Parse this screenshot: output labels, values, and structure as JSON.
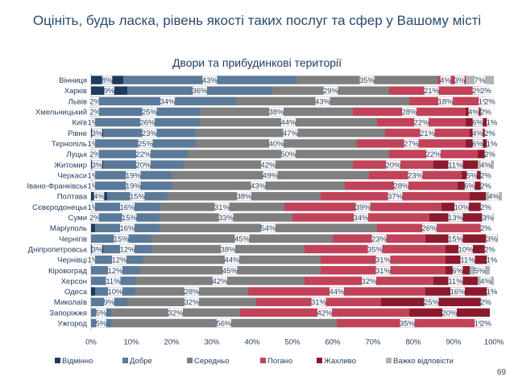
{
  "page": {
    "title": "Оцініть, будь ласка, рівень якості таких послуг та сфер у Вашому місті",
    "page_number": "69"
  },
  "chart_data": {
    "type": "bar",
    "orientation": "horizontal",
    "stacked": true,
    "title": "Двори та прибудинкові території",
    "xlim": [
      0,
      100
    ],
    "x_ticks": [
      "0%",
      "10%",
      "20%",
      "30%",
      "40%",
      "50%",
      "60%",
      "70%",
      "80%",
      "90%",
      "100%"
    ],
    "legend_position": "bottom",
    "categories": [
      "Вінниця",
      "Харків",
      "Львів",
      "Хмельницький",
      "Київ",
      "Рівне",
      "Тернопіль",
      "Луцьк",
      "Житомир",
      "Черкаси",
      "Івано-Франківськ",
      "Полтава",
      "Сєвєродонецьк",
      "Суми",
      "Маріуполь",
      "Чернігів",
      "Дніпропетровськ",
      "Чернівці",
      "Кіровоград",
      "Херсон",
      "Одеса",
      "Миколаїв",
      "Запоріжжя",
      "Ужгород"
    ],
    "series": [
      {
        "name": "Відмінно",
        "color": "#1f3a5f",
        "values": [
          8,
          9,
          2,
          2,
          1,
          3,
          1,
          2,
          3,
          1,
          1,
          4,
          1,
          2,
          1,
          0,
          3,
          1,
          0,
          0,
          1,
          0,
          0,
          0
        ],
        "labels": [
          "8%",
          "9%",
          "2%",
          "2%",
          "1%",
          "3%",
          "1%",
          "2%",
          "3%",
          "1%",
          "1%",
          "4%",
          "1%",
          "2%",
          "",
          "",
          "3%",
          "1%",
          "",
          "",
          "",
          "",
          "",
          ""
        ]
      },
      {
        "name": "Добре",
        "color": "#5b7a9a",
        "values": [
          43,
          36,
          34,
          25,
          26,
          23,
          25,
          22,
          20,
          19,
          19,
          15,
          16,
          15,
          16,
          15,
          12,
          12,
          12,
          11,
          10,
          9,
          5,
          5
        ],
        "labels": [
          "43%",
          "36%",
          "34%",
          "25%",
          "26%",
          "23%",
          "25%",
          "22%",
          "20%",
          "19%",
          "19%",
          "15%",
          "16%",
          "15%",
          "16%",
          "15%",
          "12%",
          "12%",
          "12%",
          "11%",
          "10%",
          "9%",
          "5%",
          "5%"
        ]
      },
      {
        "name": "Середньо",
        "color": "#7f7f7f",
        "values": [
          35,
          29,
          43,
          38,
          44,
          47,
          40,
          50,
          42,
          49,
          43,
          38,
          31,
          33,
          54,
          45,
          38,
          44,
          45,
          42,
          28,
          32,
          32,
          56
        ],
        "labels": [
          "35%",
          "29%",
          "43%",
          "38%",
          "44%",
          "47%",
          "40%",
          "50%",
          "42%",
          "49%",
          "43%",
          "38%",
          "31%",
          "33%",
          "54%",
          "45%",
          "38%",
          "44%",
          "45%",
          "42%",
          "28%",
          "32%",
          "32%",
          "56%"
        ]
      },
      {
        "name": "Погано",
        "color": "#c0435a",
        "values": [
          4,
          21,
          18,
          28,
          22,
          21,
          27,
          22,
          20,
          23,
          28,
          37,
          39,
          34,
          26,
          23,
          35,
          31,
          31,
          32,
          44,
          31,
          42,
          35
        ],
        "labels": [
          "4%",
          "21%",
          "18%",
          "28%",
          "22%",
          "21%",
          "27%",
          "22%",
          "20%",
          "23%",
          "28%",
          "37%",
          "39%",
          "34%",
          "26%",
          "23%",
          "35%",
          "31%",
          "31%",
          "32%",
          "44%",
          "31%",
          "42%",
          "35%"
        ]
      },
      {
        "name": "Жахливо",
        "color": "#8b1a2e",
        "values": [
          3,
          2,
          1,
          4,
          6,
          4,
          6,
          2,
          11,
          5,
          6,
          4,
          10,
          13,
          0,
          15,
          10,
          11,
          6,
          11,
          16,
          25,
          20,
          1
        ],
        "labels": [
          "3%",
          "2%",
          "1%",
          "4%",
          "6%",
          "4%",
          "6%",
          "",
          "11%",
          "5%",
          "6%",
          "",
          "10%",
          "13%",
          "",
          "15%",
          "10%",
          "11%",
          "6%",
          "11%",
          "16%",
          "25%",
          "20%",
          "1%"
        ]
      },
      {
        "name": "Важко відповісти",
        "color": "#b3b3b3",
        "values": [
          7,
          2,
          2,
          2,
          1,
          2,
          1,
          2,
          4,
          2,
          2,
          4,
          2,
          3,
          2,
          3,
          2,
          1,
          5,
          4,
          1,
          2,
          0,
          2
        ],
        "labels": [
          "7%",
          "2%",
          "2%",
          "2%",
          "1%",
          "2%",
          "1%",
          "2%",
          "4%",
          "2%",
          "2%",
          "4%",
          "2%",
          "3%",
          "2%",
          "3%",
          "2%",
          "1%",
          "5%",
          "4%",
          "1%",
          "2%",
          "",
          "2%"
        ]
      }
    ]
  }
}
